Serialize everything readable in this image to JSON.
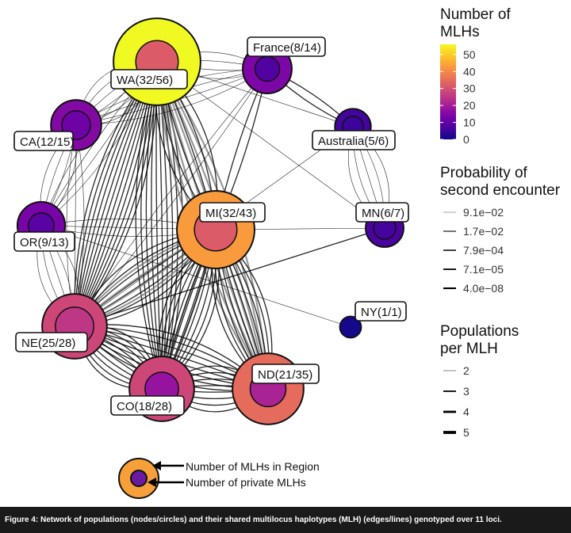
{
  "colors": {
    "viridis_stops": [
      "#0d0887",
      "#41049d",
      "#6a00a8",
      "#8f0da4",
      "#b12a90",
      "#cc4778",
      "#e16462",
      "#f2844b",
      "#fca636",
      "#fcce25",
      "#f0f921"
    ],
    "caption_bg": "#1a1a1a",
    "edge": "#000000"
  },
  "nodes": [
    {
      "id": "WA",
      "name": "WA",
      "private": 32,
      "region": 56,
      "label": "WA(32/56)"
    },
    {
      "id": "France",
      "name": "France",
      "private": 8,
      "region": 14,
      "label": "France(8/14)"
    },
    {
      "id": "Australia",
      "name": "Australia",
      "private": 5,
      "region": 6,
      "label": "Australia(5/6)"
    },
    {
      "id": "CA",
      "name": "CA",
      "private": 12,
      "region": 15,
      "label": "CA(12/15)"
    },
    {
      "id": "MI",
      "name": "MI",
      "private": 32,
      "region": 43,
      "label": "MI(32/43)"
    },
    {
      "id": "MN",
      "name": "MN",
      "private": 6,
      "region": 7,
      "label": "MN(6/7)"
    },
    {
      "id": "OR",
      "name": "OR",
      "private": 9,
      "region": 13,
      "label": "OR(9/13)"
    },
    {
      "id": "NY",
      "name": "NY",
      "private": 1,
      "region": 1,
      "label": "NY(1/1)"
    },
    {
      "id": "NE",
      "name": "NE",
      "private": 25,
      "region": 28,
      "label": "NE(25/28)"
    },
    {
      "id": "ND",
      "name": "ND",
      "private": 21,
      "region": 35,
      "label": "ND(21/35)"
    },
    {
      "id": "CO",
      "name": "CO",
      "private": 18,
      "region": 28,
      "label": "CO(18/28)"
    }
  ],
  "edges": [
    {
      "from": "WA",
      "to": "NE",
      "count": 12,
      "populations": 3
    },
    {
      "from": "WA",
      "to": "CO",
      "count": 10,
      "populations": 3
    },
    {
      "from": "WA",
      "to": "ND",
      "count": 8,
      "populations": 4
    },
    {
      "from": "WA",
      "to": "MI",
      "count": 6,
      "populations": 3
    },
    {
      "from": "WA",
      "to": "CA",
      "count": 6,
      "populations": 2
    },
    {
      "from": "WA",
      "to": "OR",
      "count": 4,
      "populations": 2
    },
    {
      "from": "WA",
      "to": "France",
      "count": 4,
      "populations": 2
    },
    {
      "from": "WA",
      "to": "MN",
      "count": 1,
      "populations": 2
    },
    {
      "from": "WA",
      "to": "Australia",
      "count": 1,
      "populations": 2
    },
    {
      "from": "MI",
      "to": "ND",
      "count": 10,
      "populations": 3
    },
    {
      "from": "MI",
      "to": "CO",
      "count": 10,
      "populations": 3
    },
    {
      "from": "MI",
      "to": "NE",
      "count": 8,
      "populations": 3
    },
    {
      "from": "MI",
      "to": "OR",
      "count": 3,
      "populations": 2
    },
    {
      "from": "MI",
      "to": "MN",
      "count": 1,
      "populations": 2
    },
    {
      "from": "MI",
      "to": "France",
      "count": 2,
      "populations": 3
    },
    {
      "from": "NE",
      "to": "CO",
      "count": 10,
      "populations": 3
    },
    {
      "from": "NE",
      "to": "ND",
      "count": 8,
      "populations": 3
    },
    {
      "from": "NE",
      "to": "OR",
      "count": 5,
      "populations": 2
    },
    {
      "from": "NE",
      "to": "MI",
      "count": 4,
      "populations": 4
    },
    {
      "from": "CO",
      "to": "ND",
      "count": 8,
      "populations": 3
    },
    {
      "from": "CA",
      "to": "OR",
      "count": 4,
      "populations": 2
    },
    {
      "from": "CA",
      "to": "France",
      "count": 4,
      "populations": 2
    },
    {
      "from": "CA",
      "to": "NE",
      "count": 3,
      "populations": 2
    },
    {
      "from": "OR",
      "to": "NY",
      "count": 1,
      "populations": 2
    },
    {
      "from": "France",
      "to": "Australia",
      "count": 2,
      "populations": 3
    },
    {
      "from": "France",
      "to": "NE",
      "count": 2,
      "populations": 2
    },
    {
      "from": "Australia",
      "to": "MN",
      "count": 5,
      "populations": 2
    },
    {
      "from": "Australia",
      "to": "NE",
      "count": 1,
      "populations": 2
    },
    {
      "from": "MI",
      "to": "CO",
      "count": 2,
      "populations": 4
    },
    {
      "from": "NE",
      "to": "MN",
      "count": 1,
      "populations": 3
    },
    {
      "from": "CO",
      "to": "MI",
      "count": 2,
      "populations": 3
    }
  ],
  "legend": {
    "size_key": {
      "region_label": "Number of MLHs in Region",
      "private_label": "Number of private MLHs"
    },
    "mlh_colorbar": {
      "title_line1": "Number of",
      "title_line2": "MLHs",
      "ticks": [
        "50",
        "40",
        "30",
        "20",
        "10",
        "0"
      ],
      "tick_values": [
        50,
        40,
        30,
        20,
        10,
        0
      ],
      "min": 0,
      "max": 56
    },
    "probability": {
      "title_line1": "Probability of",
      "title_line2": "second encounter",
      "entries": [
        "9.1e−02",
        "1.7e−02",
        "7.9e−04",
        "7.1e−05",
        "4.0e−08"
      ]
    },
    "populations": {
      "title_line1": "Populations",
      "title_line2": "per MLH",
      "entries": [
        "2",
        "3",
        "4",
        "5"
      ]
    }
  },
  "caption": "Figure 4: Network of populations (nodes/circles) and their shared multilocus haplotypes (MLH) (edges/lines) genotyped over 11 loci."
}
